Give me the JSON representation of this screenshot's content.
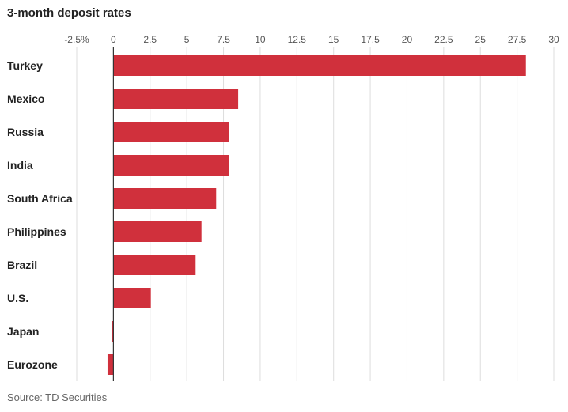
{
  "chart_data": {
    "type": "bar",
    "orientation": "horizontal",
    "title": "3-month deposit rates",
    "source": "Source: TD Securities",
    "categories": [
      "Turkey",
      "Mexico",
      "Russia",
      "India",
      "South Africa",
      "Philippines",
      "Brazil",
      "U.S.",
      "Japan",
      "Eurozone"
    ],
    "values": [
      28.1,
      8.5,
      7.9,
      7.85,
      7.0,
      6.0,
      5.6,
      2.55,
      -0.1,
      -0.4
    ],
    "xlim": [
      -2.5,
      30
    ],
    "xticks": [
      -2.5,
      0,
      2.5,
      5,
      7.5,
      10,
      12.5,
      15,
      17.5,
      20,
      22.5,
      25,
      27.5,
      30
    ],
    "xtick_labels": [
      "-2.5%",
      "0",
      "2.5",
      "5",
      "7.5",
      "10",
      "12.5",
      "15",
      "17.5",
      "20",
      "22.5",
      "25",
      "27.5",
      "30"
    ],
    "grid": true,
    "bar_color": "#d0303c",
    "grid_color": "#dddddd",
    "axis_color": "#333333"
  }
}
